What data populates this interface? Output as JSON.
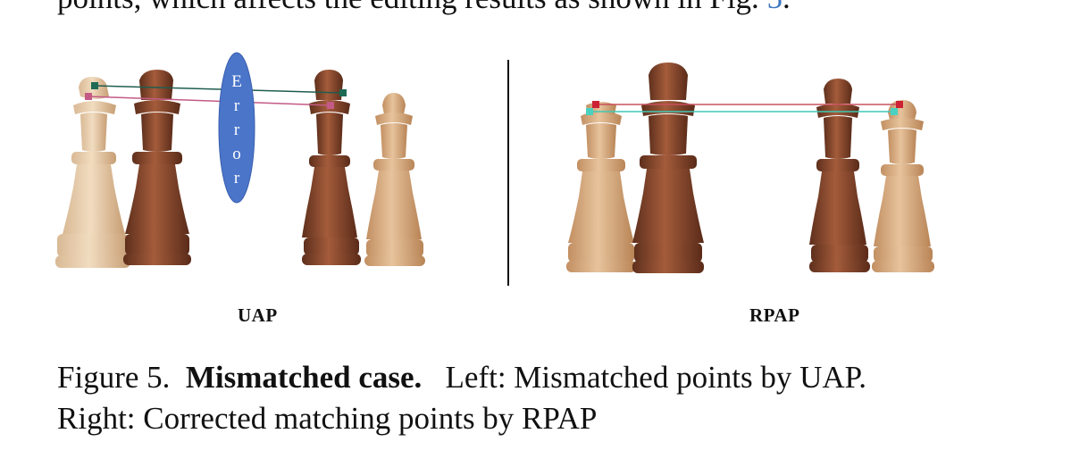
{
  "top_text": {
    "prefix": "points, which affects the editing results as shown in Fig.",
    "ref": "5",
    "suffix": "."
  },
  "figure": {
    "left_label": "UAP",
    "right_label": "RPAP",
    "error_letters": [
      "E",
      "r",
      "r",
      "o",
      "r"
    ]
  },
  "caption": {
    "number": "Figure 5.",
    "title": "Mismatched case.",
    "line1_rest": "Left: Mismatched points by UAP.",
    "line2": "Right: Corrected matching points by RPAP"
  }
}
